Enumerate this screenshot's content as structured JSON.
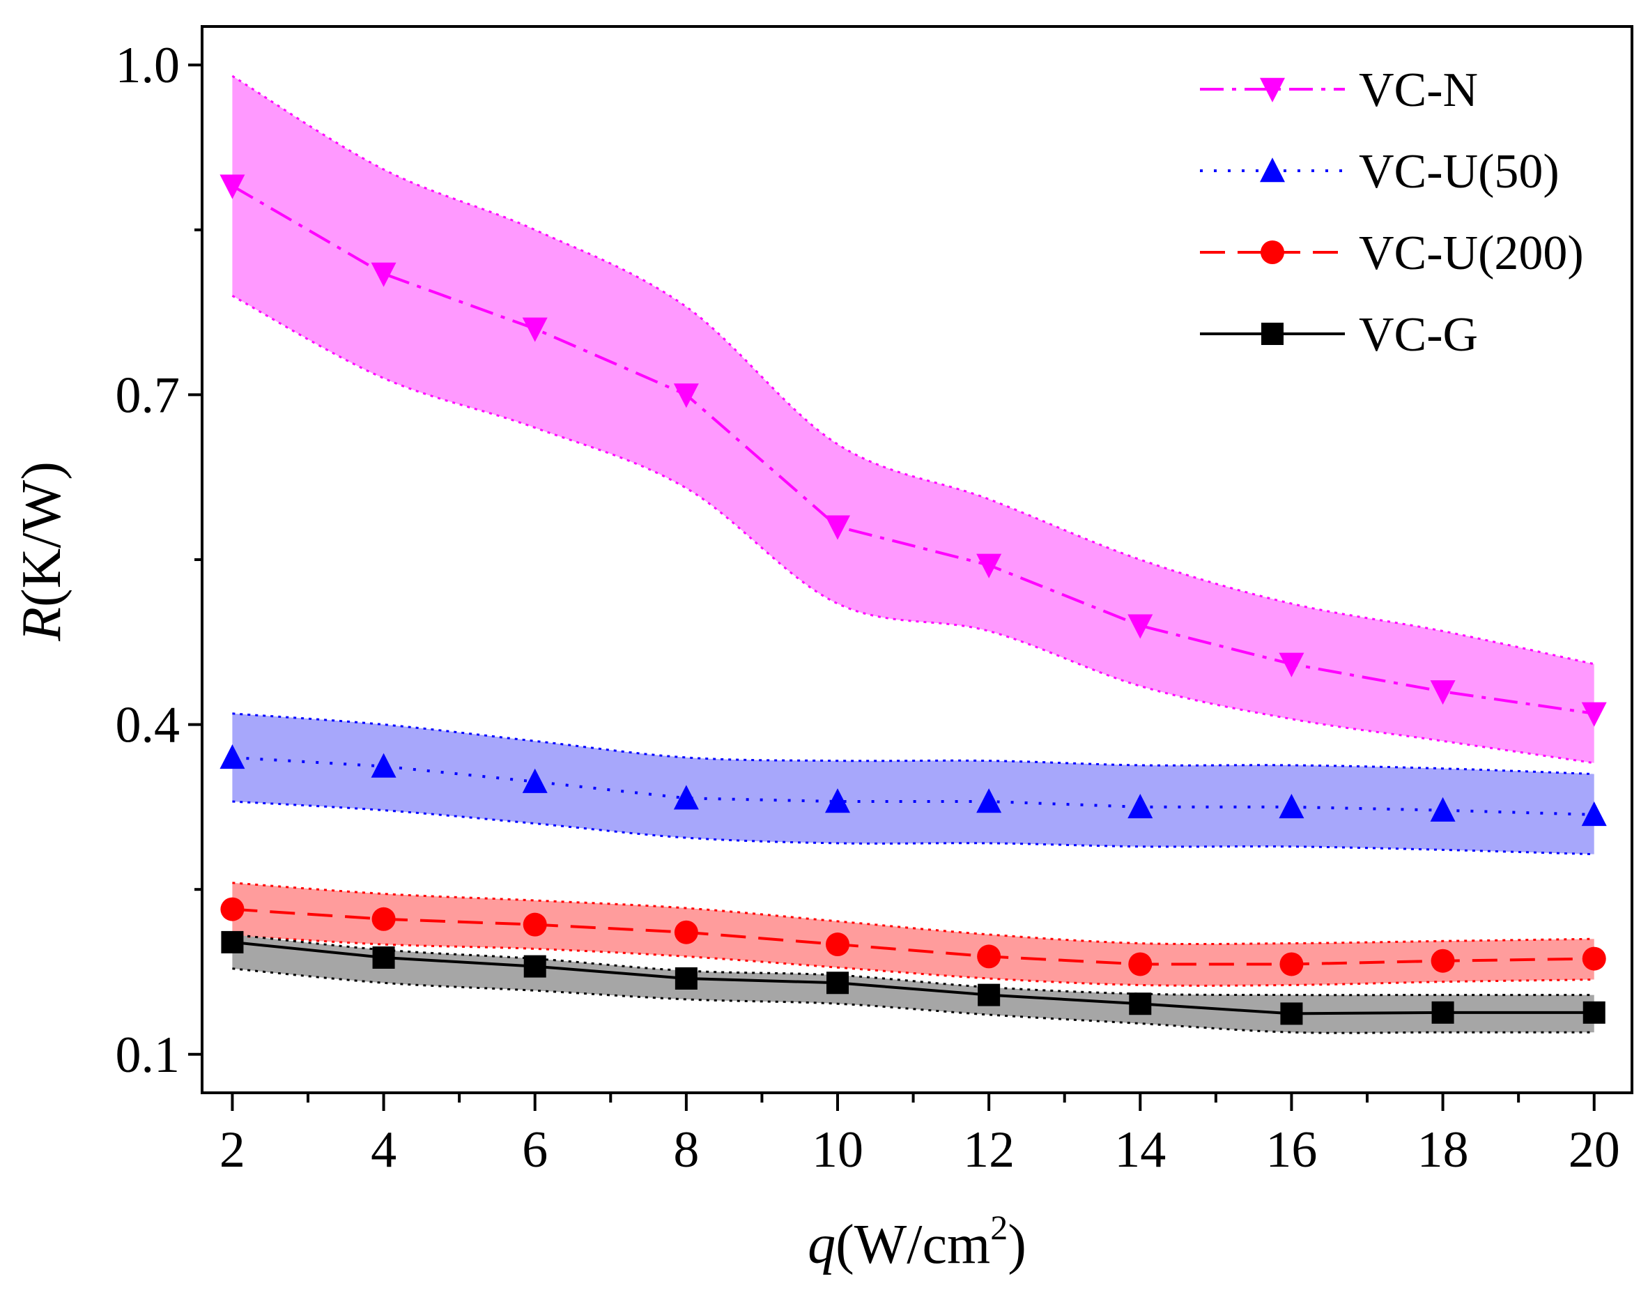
{
  "chart_data": {
    "type": "line",
    "title": "",
    "xlabel": {
      "var": "q",
      "unit_prefix": "(W/cm",
      "unit_sup": "2",
      "unit_suffix": ")"
    },
    "ylabel": {
      "var": "R",
      "unit": "(K/W)"
    },
    "xlim": [
      1.6,
      20.5
    ],
    "ylim": [
      0.065,
      1.035
    ],
    "x_ticks": [
      2,
      4,
      6,
      8,
      10,
      12,
      14,
      16,
      18,
      20
    ],
    "x_tick_labels": [
      "2",
      "4",
      "6",
      "8",
      "10",
      "12",
      "14",
      "16",
      "18",
      "20"
    ],
    "x_minor_ticks": [
      3,
      5,
      7,
      9,
      11,
      13,
      15,
      17,
      19
    ],
    "y_ticks": [
      0.1,
      0.4,
      0.7,
      1.0
    ],
    "y_tick_labels": [
      "0.1",
      "0.4",
      "0.7",
      "1.0"
    ],
    "grid": false,
    "legend_position": "top-right",
    "x": [
      2,
      4,
      6,
      8,
      10,
      12,
      14,
      16,
      18,
      20
    ],
    "series": [
      {
        "name": "VC-N",
        "color": "#ff00ff",
        "band_color": "#ff99ff",
        "marker": "triangle-down",
        "line_style": "dash-dot",
        "values": [
          0.89,
          0.81,
          0.76,
          0.7,
          0.58,
          0.545,
          0.49,
          0.455,
          0.43,
          0.41
        ],
        "upper": [
          0.99,
          0.905,
          0.85,
          0.78,
          0.655,
          0.605,
          0.55,
          0.51,
          0.485,
          0.455
        ],
        "lower": [
          0.79,
          0.715,
          0.67,
          0.615,
          0.51,
          0.485,
          0.435,
          0.405,
          0.385,
          0.365
        ]
      },
      {
        "name": "VC-U(50)",
        "color": "#0000ff",
        "band_color": "#a7a7fb",
        "marker": "triangle-up",
        "line_style": "dotted",
        "values": [
          0.37,
          0.362,
          0.348,
          0.333,
          0.33,
          0.33,
          0.325,
          0.325,
          0.322,
          0.318
        ],
        "upper": [
          0.41,
          0.4,
          0.385,
          0.37,
          0.367,
          0.367,
          0.363,
          0.363,
          0.36,
          0.355
        ],
        "lower": [
          0.33,
          0.322,
          0.31,
          0.297,
          0.292,
          0.292,
          0.289,
          0.289,
          0.286,
          0.282
        ]
      },
      {
        "name": "VC-U(200)",
        "color": "#ff0000",
        "band_color": "#ff9c9c",
        "marker": "circle",
        "line_style": "dashed",
        "values": [
          0.232,
          0.223,
          0.218,
          0.211,
          0.2,
          0.189,
          0.182,
          0.182,
          0.185,
          0.187
        ],
        "upper": [
          0.256,
          0.246,
          0.24,
          0.233,
          0.221,
          0.209,
          0.201,
          0.201,
          0.203,
          0.205
        ],
        "lower": [
          0.208,
          0.2,
          0.196,
          0.189,
          0.179,
          0.169,
          0.163,
          0.163,
          0.166,
          0.168
        ]
      },
      {
        "name": "VC-G",
        "color": "#000000",
        "band_color": "#a6a6a6",
        "marker": "square",
        "line_style": "solid",
        "values": [
          0.202,
          0.188,
          0.18,
          0.169,
          0.165,
          0.154,
          0.146,
          0.137,
          0.138,
          0.138
        ],
        "upper": [
          0.209,
          0.195,
          0.187,
          0.176,
          0.172,
          0.161,
          0.155,
          0.154,
          0.154,
          0.154
        ],
        "lower": [
          0.178,
          0.165,
          0.158,
          0.15,
          0.146,
          0.136,
          0.128,
          0.12,
          0.12,
          0.12
        ]
      }
    ]
  }
}
